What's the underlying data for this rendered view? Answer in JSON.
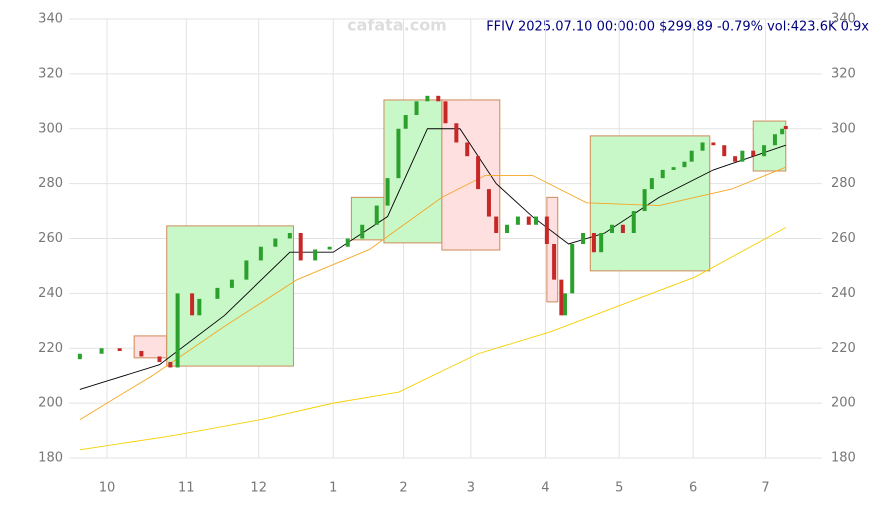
{
  "chart_data": {
    "type": "candlestick",
    "title": "FFIV 2025.07.10 00:00:00 $299.89 -0.79% vol:423.6K 0.9x",
    "watermark": "cafata.com",
    "x": [
      0,
      6,
      11,
      17,
      22,
      25,
      27,
      31,
      33,
      38,
      42,
      46,
      50,
      54,
      58,
      61,
      65,
      69,
      74,
      78,
      82,
      85,
      88,
      90,
      93,
      96,
      99,
      101,
      104,
      107,
      110,
      113,
      115,
      118,
      121,
      124,
      126,
      129,
      131,
      133,
      134,
      136,
      139,
      142,
      144,
      147,
      150,
      153,
      156,
      158,
      161,
      164,
      167,
      169,
      172,
      175,
      178,
      181,
      183,
      186,
      189,
      192,
      194,
      195
    ],
    "open": [
      216,
      218,
      220,
      219,
      217,
      215,
      213,
      240,
      232,
      238,
      242,
      245,
      252,
      257,
      260,
      262,
      252,
      256,
      257,
      260,
      265,
      272,
      282,
      300,
      305,
      310,
      312,
      310,
      302,
      295,
      290,
      278,
      268,
      262,
      265,
      268,
      265,
      268,
      258,
      245,
      232,
      240,
      258,
      262,
      255,
      262,
      265,
      262,
      270,
      278,
      282,
      285,
      286,
      288,
      292,
      295,
      294,
      290,
      288,
      292,
      290,
      294,
      298,
      301
    ],
    "close": [
      218,
      220,
      219,
      217,
      215,
      213,
      240,
      232,
      238,
      242,
      245,
      252,
      257,
      260,
      262,
      252,
      256,
      257,
      260,
      265,
      272,
      282,
      300,
      305,
      310,
      312,
      310,
      302,
      295,
      290,
      278,
      268,
      262,
      265,
      268,
      265,
      268,
      258,
      245,
      232,
      240,
      258,
      262,
      255,
      262,
      265,
      262,
      270,
      278,
      282,
      285,
      286,
      288,
      292,
      295,
      294,
      290,
      288,
      292,
      290,
      294,
      298,
      300,
      299.89
    ],
    "up_color": "#2ca02c",
    "down_color": "#c62828",
    "lines": [
      {
        "color": "#000000",
        "x": [
          0,
          22,
          40,
          58,
          70,
          85,
          96,
          105,
          115,
          125,
          135,
          145,
          160,
          175,
          195
        ],
        "values": [
          205,
          214,
          232,
          255,
          255,
          268,
          300,
          300,
          280,
          268,
          258,
          262,
          275,
          285,
          294
        ]
      },
      {
        "color": "#f5a623",
        "x": [
          0,
          20,
          40,
          60,
          80,
          100,
          112,
          125,
          140,
          160,
          180,
          195
        ],
        "values": [
          194,
          210,
          228,
          245,
          256,
          275,
          283,
          283,
          273,
          272,
          278,
          286
        ]
      },
      {
        "color": "#f5d000",
        "x": [
          0,
          25,
          50,
          70,
          88,
          110,
          130,
          150,
          170,
          195
        ],
        "values": [
          183,
          188,
          194,
          200,
          204,
          218,
          226,
          236,
          246,
          264
        ]
      }
    ],
    "boxes": [
      {
        "color": "#ffe0e0",
        "x": [
          15,
          24
        ],
        "values": [
          216.5,
          224.5
        ]
      },
      {
        "color": "#c8f7c8",
        "x": [
          24,
          59
        ],
        "values": [
          213.5,
          264.6
        ]
      },
      {
        "color": "#c8f7c8",
        "x": [
          75,
          84
        ],
        "values": [
          259.5,
          275
        ]
      },
      {
        "color": "#c8f7c8",
        "x": [
          84,
          100
        ],
        "values": [
          258.4,
          310.5
        ]
      },
      {
        "color": "#ffe0e0",
        "x": [
          100,
          116
        ],
        "values": [
          255.8,
          310.5
        ]
      },
      {
        "color": "#ffe0e0",
        "x": [
          129,
          132
        ],
        "values": [
          236.9,
          275
        ]
      },
      {
        "color": "#c8f7c8",
        "x": [
          141,
          174
        ],
        "values": [
          248.2,
          297.4
        ]
      },
      {
        "color": "#c8f7c8",
        "x": [
          186,
          195
        ],
        "values": [
          284.6,
          302.8
        ]
      }
    ],
    "xlim": [
      -3,
      205
    ],
    "xticks": [
      {
        "value": 7.5,
        "label": "10"
      },
      {
        "value": 29.4,
        "label": "11"
      },
      {
        "value": 49.4,
        "label": "12"
      },
      {
        "value": 70,
        "label": "1"
      },
      {
        "value": 89.4,
        "label": "2"
      },
      {
        "value": 108,
        "label": "3"
      },
      {
        "value": 128.6,
        "label": "4"
      },
      {
        "value": 149,
        "label": "5"
      },
      {
        "value": 169.4,
        "label": "6"
      },
      {
        "value": 189.4,
        "label": "7"
      }
    ],
    "ylim": [
      180,
      340
    ],
    "yticks": [
      180,
      200,
      220,
      240,
      260,
      280,
      300,
      320,
      340
    ],
    "grid": true
  }
}
